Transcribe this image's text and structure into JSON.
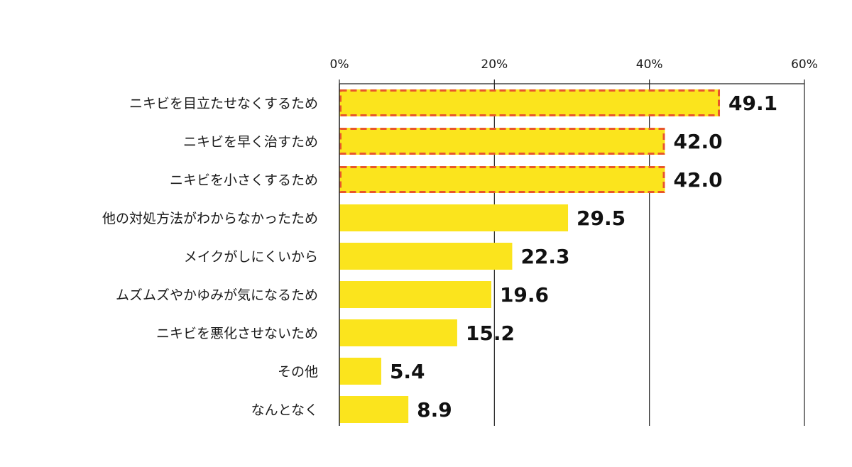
{
  "chart_data": {
    "type": "bar",
    "orientation": "horizontal",
    "title": "",
    "xlabel": "",
    "ylabel": "",
    "xlim": [
      0,
      60
    ],
    "x_ticks": [
      0,
      20,
      40,
      60
    ],
    "x_tick_labels": [
      "0%",
      "20%",
      "40%",
      "60%"
    ],
    "x_axis_position": "top",
    "grid": true,
    "categories": [
      "ニキビを目立たせなくするため",
      "ニキビを早く治すため",
      "ニキビを小さくするため",
      "他の対処方法がわからなかったため",
      "メイクがしにくいから",
      "ムズムズやかゆみが気になるため",
      "ニキビを悪化させないため",
      "その他",
      "なんとなく"
    ],
    "values": [
      49.1,
      42.0,
      42.0,
      29.5,
      22.3,
      19.6,
      15.2,
      5.4,
      8.9
    ],
    "value_labels": [
      "49.1",
      "42.0",
      "42.0",
      "29.5",
      "22.3",
      "19.6",
      "15.2",
      "5.4",
      "8.9"
    ],
    "highlighted": [
      true,
      true,
      true,
      false,
      false,
      false,
      false,
      false,
      false
    ],
    "colors": {
      "bar": "#fbe41d",
      "highlight_border": "#e8572a",
      "axis": "#222222",
      "grid": "#222222"
    }
  }
}
